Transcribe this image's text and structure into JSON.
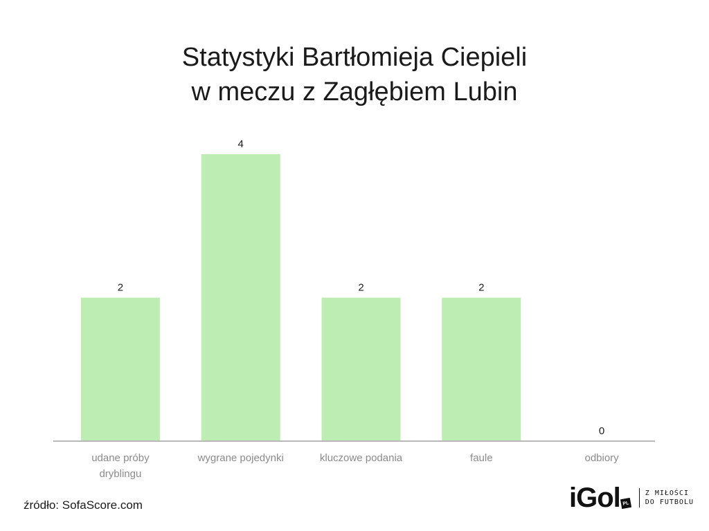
{
  "chart_data": {
    "type": "bar",
    "title_lines": [
      "Statystyki Bartłomieja Ciepieli",
      "w meczu z Zagłębiem Lubin"
    ],
    "categories": [
      [
        "udane próby",
        "dryblingu"
      ],
      [
        "wygrane pojedynki"
      ],
      [
        "kluczowe podania"
      ],
      [
        "faule"
      ],
      [
        "odbiory"
      ]
    ],
    "values": [
      2,
      4,
      2,
      2,
      0
    ],
    "value_labels": [
      "2",
      "4",
      "2",
      "2",
      "0"
    ],
    "ylim": [
      0,
      4
    ],
    "bar_color": "#bdedb3",
    "axis_color": "#b8b8b8",
    "grid": false,
    "legend": "none"
  },
  "footer": {
    "source": "źródło: SofaScore.com"
  },
  "logo": {
    "word": "iGol",
    "badge": "PL",
    "tagline_lines": [
      "Z MIŁOŚCI",
      "DO FUTBOLU"
    ]
  }
}
